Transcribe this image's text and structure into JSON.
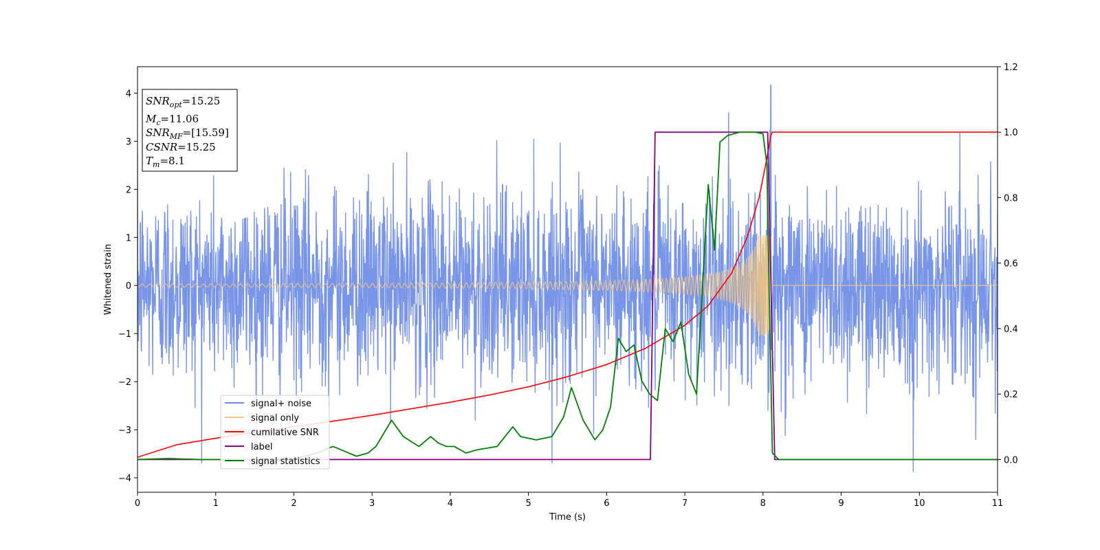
{
  "chart_data": {
    "type": "line",
    "xlabel": "Time (s)",
    "ylabel": "Whitened strain",
    "xlim": [
      0,
      11
    ],
    "ylim_left": [
      -4.3,
      4.55
    ],
    "ylim_right": [
      -0.1,
      1.2
    ],
    "x_ticks": [
      "0",
      "1",
      "2",
      "3",
      "4",
      "5",
      "6",
      "7",
      "8",
      "9",
      "10",
      "11"
    ],
    "y_left_ticks": [
      "4",
      "3",
      "2",
      "1",
      "0",
      "−1",
      "−2",
      "−3",
      "−4"
    ],
    "y_right_ticks": [
      "1.2",
      "1.0",
      "0.8",
      "0.6",
      "0.4",
      "0.2",
      "0.0"
    ],
    "grid": false,
    "legend_placement": "lower-left",
    "series": [
      {
        "name": "signal+ noise",
        "axis": "left",
        "color": "#6a89e6",
        "description_values": {
          "noise_std": 1.0,
          "max_peak": 4.17,
          "max_peak_time": 8.1,
          "min_dip": -3.88,
          "min_dip_time": 9.92
        }
      },
      {
        "name": "signal only",
        "axis": "left",
        "color": "#f5c77e",
        "chirp": {
          "start_time": 0.0,
          "merger_time": 8.1,
          "start_amplitude": 0.03,
          "peak_amplitude": 1.05,
          "start_freq": 10,
          "end_freq": 55
        }
      },
      {
        "name": "cumilative SNR",
        "axis": "right",
        "color": "#ff0000",
        "x": [
          0,
          0.5,
          1,
          1.5,
          2,
          2.5,
          3,
          3.5,
          4,
          4.5,
          5,
          5.5,
          6,
          6.5,
          7,
          7.3,
          7.6,
          7.8,
          7.95,
          8.05,
          8.1,
          8.12,
          11
        ],
        "y": [
          0.007,
          0.045,
          0.065,
          0.083,
          0.1,
          0.117,
          0.135,
          0.155,
          0.175,
          0.197,
          0.222,
          0.253,
          0.29,
          0.34,
          0.41,
          0.47,
          0.57,
          0.68,
          0.8,
          0.92,
          0.99,
          1.0,
          1.0
        ]
      },
      {
        "name": "label",
        "axis": "right",
        "color": "#800080",
        "x": [
          0,
          6.56,
          6.62,
          8.06,
          8.15,
          11
        ],
        "y": [
          0,
          0,
          1,
          1,
          0,
          0
        ]
      },
      {
        "name": "signal statistics",
        "axis": "right",
        "color": "#008000",
        "x": [
          0,
          0.4,
          0.8,
          1.5,
          2.0,
          2.3,
          2.5,
          2.6,
          2.8,
          2.95,
          3.05,
          3.15,
          3.25,
          3.4,
          3.6,
          3.75,
          3.85,
          3.95,
          4.05,
          4.2,
          4.35,
          4.6,
          4.8,
          4.9,
          5.1,
          5.3,
          5.45,
          5.55,
          5.7,
          5.85,
          5.95,
          6.05,
          6.15,
          6.25,
          6.35,
          6.45,
          6.55,
          6.65,
          6.75,
          6.85,
          6.95,
          7.05,
          7.15,
          7.3,
          7.38,
          7.45,
          7.55,
          7.7,
          7.9,
          8.0,
          8.05,
          8.08,
          8.12,
          8.2,
          8.4,
          11
        ],
        "y": [
          0,
          0.003,
          0,
          0,
          0.002,
          0.02,
          0.04,
          0.03,
          0.01,
          0.02,
          0.04,
          0.08,
          0.12,
          0.07,
          0.04,
          0.07,
          0.05,
          0.04,
          0.04,
          0.02,
          0.03,
          0.04,
          0.1,
          0.07,
          0.06,
          0.07,
          0.13,
          0.22,
          0.12,
          0.06,
          0.09,
          0.16,
          0.37,
          0.33,
          0.35,
          0.24,
          0.2,
          0.18,
          0.4,
          0.36,
          0.42,
          0.26,
          0.2,
          0.84,
          0.64,
          0.97,
          0.99,
          1.0,
          1.0,
          0.995,
          0.9,
          0.5,
          0.02,
          0.0,
          0.0,
          0.0
        ]
      }
    ],
    "annotation_box": {
      "lines": [
        {
          "var": "SNR",
          "sub": "opt",
          "value": "=15.25"
        },
        {
          "var": "M",
          "sub": "c",
          "value": "=11.06"
        },
        {
          "var": "SNR",
          "sub": "MF",
          "value": "=[15.59]"
        },
        {
          "var": "CSNR",
          "sub": "",
          "value": "=15.25"
        },
        {
          "var": "T",
          "sub": "m",
          "value": "=8.1"
        }
      ]
    }
  }
}
